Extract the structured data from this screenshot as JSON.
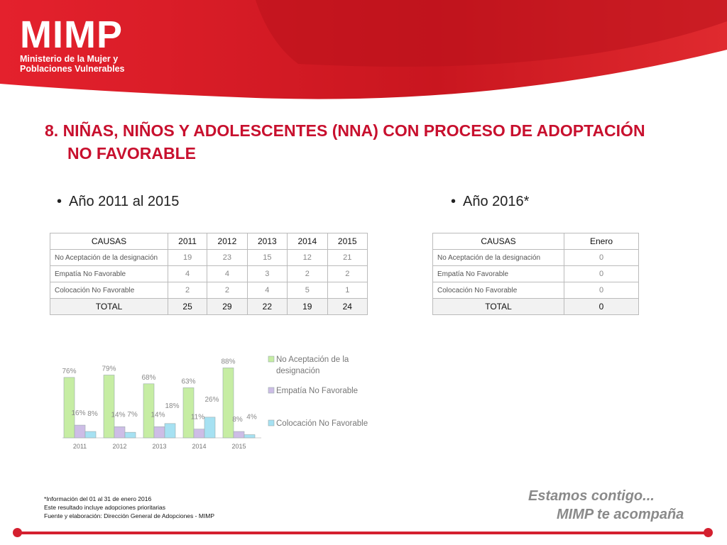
{
  "logo": {
    "name": "MIMP",
    "line1": "Ministerio de la Mujer y",
    "line2": "Poblaciones Vulnerables"
  },
  "title": {
    "line1": "8. NIÑAS, NIÑOS Y ADOLESCENTES (NNA) CON PROCESO DE ADOPTACIÓN",
    "line2": "NO FAVORABLE"
  },
  "left": {
    "bullet": "Año 2011 al 2015",
    "headers": [
      "CAUSAS",
      "2011",
      "2012",
      "2013",
      "2014",
      "2015"
    ],
    "rows": [
      [
        "No Aceptación de la designación",
        "19",
        "23",
        "15",
        "12",
        "21"
      ],
      [
        "Empatía No Favorable",
        "4",
        "4",
        "3",
        "2",
        "2"
      ],
      [
        "Colocación No Favorable",
        "2",
        "2",
        "4",
        "5",
        "1"
      ]
    ],
    "total": [
      "TOTAL",
      "25",
      "29",
      "22",
      "19",
      "24"
    ]
  },
  "right": {
    "bullet": "Año 2016*",
    "headers": [
      "CAUSAS",
      "Enero"
    ],
    "rows": [
      [
        "No Aceptación de la designación",
        "0"
      ],
      [
        "Empatía No Favorable",
        "0"
      ],
      [
        "Colocación No Favorable",
        "0"
      ]
    ],
    "total": [
      "TOTAL",
      "0"
    ]
  },
  "chart_data": {
    "type": "bar",
    "categories": [
      "2011",
      "2012",
      "2013",
      "2014",
      "2015"
    ],
    "series": [
      {
        "name": "No Aceptación de la designación",
        "values": [
          76,
          79,
          68,
          63,
          88
        ],
        "labels": [
          "76%",
          "79%",
          "68%",
          "63%",
          "88%"
        ],
        "color": "#c6eda3"
      },
      {
        "name": "Empatía No Favorable",
        "values": [
          16,
          14,
          14,
          11,
          8
        ],
        "labels": [
          "16%",
          "14%",
          "14%",
          "11%",
          "8%"
        ],
        "color": "#cdbde6"
      },
      {
        "name": "Colocación No Favorable",
        "values": [
          8,
          7,
          18,
          26,
          4
        ],
        "labels": [
          "8%",
          "7%",
          "18%",
          "26%",
          "4%"
        ],
        "color": "#a6e1f2"
      }
    ],
    "ylim": [
      0,
      100
    ]
  },
  "notes": {
    "n1": "*Información del  01 al 31 de enero 2016",
    "n2": "Este resultado incluye adopciones prioritarias",
    "n3": "Fuente y elaboración: Dirección General de Adopciones - MIMP"
  },
  "slogan": {
    "line1": "Estamos contigo...",
    "line2": "MIMP te acompaña"
  },
  "colors": {
    "brand_red": "#d4202f",
    "title_red": "#c8102e"
  }
}
